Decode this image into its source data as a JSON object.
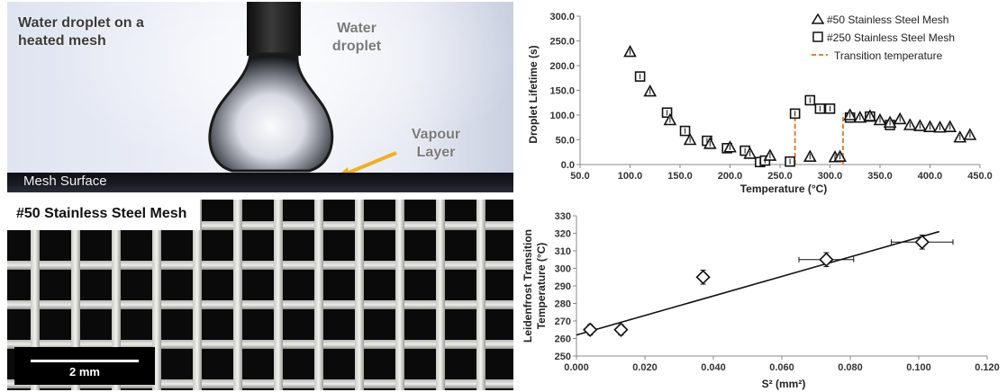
{
  "photo_droplet": {
    "title": "Water droplet on a heated mesh",
    "title_line1": "Water droplet on a",
    "title_line2": "heated mesh",
    "droplet_label_line1": "Water",
    "droplet_label_line2": "droplet",
    "vapour_label_line1": "Vapour",
    "vapour_label_line2": "Layer",
    "surface_label": "Mesh Surface",
    "arrow_color": "#f2b01e"
  },
  "photo_mesh": {
    "title": "#50 Stainless Steel Mesh",
    "scale_label": "2 mm"
  },
  "chart_data": [
    {
      "type": "scatter",
      "xlabel": "Temperature (°C)",
      "ylabel": "Droplet Lifetime (s)",
      "xlim": [
        50,
        450
      ],
      "ylim": [
        0,
        300
      ],
      "xticks": [
        "50.0",
        "100.0",
        "150.0",
        "200.0",
        "250.0",
        "300.0",
        "350.0",
        "400.0",
        "450.0"
      ],
      "yticks": [
        "0.0",
        "50.0",
        "100.0",
        "150.0",
        "200.0",
        "250.0",
        "300.0"
      ],
      "legend_position": "top-right",
      "series": [
        {
          "name": "#50 Stainless Steel Mesh",
          "marker": "triangle",
          "points": [
            [
              100,
              228
            ],
            [
              120,
              148
            ],
            [
              140,
              90
            ],
            [
              160,
              50
            ],
            [
              180,
              42
            ],
            [
              200,
              35
            ],
            [
              220,
              22
            ],
            [
              240,
              18
            ],
            [
              280,
              16
            ],
            [
              305,
              15
            ],
            [
              310,
              16
            ],
            [
              320,
              100
            ],
            [
              330,
              95
            ],
            [
              340,
              98
            ],
            [
              350,
              90
            ],
            [
              360,
              85
            ],
            [
              370,
              92
            ],
            [
              380,
              80
            ],
            [
              390,
              78
            ],
            [
              400,
              76
            ],
            [
              410,
              75
            ],
            [
              420,
              76
            ],
            [
              430,
              55
            ],
            [
              440,
              60
            ]
          ]
        },
        {
          "name": "#250 Stainless Steel Mesh",
          "marker": "square",
          "points": [
            [
              110,
              178
            ],
            [
              137,
              105
            ],
            [
              155,
              68
            ],
            [
              177,
              48
            ],
            [
              197,
              33
            ],
            [
              215,
              28
            ],
            [
              230,
              5
            ],
            [
              235,
              8
            ],
            [
              260,
              6
            ],
            [
              265,
              103
            ],
            [
              280,
              130
            ],
            [
              290,
              113
            ],
            [
              300,
              113
            ],
            [
              320,
              95
            ],
            [
              340,
              97
            ],
            [
              360,
              80
            ]
          ]
        },
        {
          "name": "Transition temperature",
          "style": "dashed-line",
          "color": "#ed7d31",
          "lines": [
            [
              [
                265,
                0
              ],
              [
                265,
                103
              ]
            ],
            [
              [
                313,
                0
              ],
              [
                313,
                103
              ]
            ]
          ]
        }
      ]
    },
    {
      "type": "scatter",
      "xlabel": "S² (mm²)",
      "ylabel_line1": "Leidenfrost Transition",
      "ylabel_line2": "Temperature (°C)",
      "xlim": [
        0,
        0.12
      ],
      "ylim": [
        250,
        330
      ],
      "xticks": [
        "0.000",
        "0.020",
        "0.040",
        "0.060",
        "0.080",
        "0.100",
        "0.120"
      ],
      "yticks": [
        "250",
        "260",
        "270",
        "280",
        "290",
        "300",
        "310",
        "320",
        "330"
      ],
      "series": [
        {
          "marker": "diamond",
          "points": [
            {
              "x": 0.004,
              "y": 265,
              "xerr": 0.001,
              "yerr": 3
            },
            {
              "x": 0.013,
              "y": 265,
              "xerr": 0.001,
              "yerr": 3
            },
            {
              "x": 0.037,
              "y": 295,
              "xerr": 0.001,
              "yerr": 4
            },
            {
              "x": 0.073,
              "y": 305,
              "xerr": 0.008,
              "yerr": 4
            },
            {
              "x": 0.101,
              "y": 315,
              "xerr": 0.009,
              "yerr": 4
            }
          ]
        }
      ],
      "trendline": {
        "x0": 0.0,
        "y0": 262,
        "x1": 0.106,
        "y1": 321
      }
    }
  ]
}
